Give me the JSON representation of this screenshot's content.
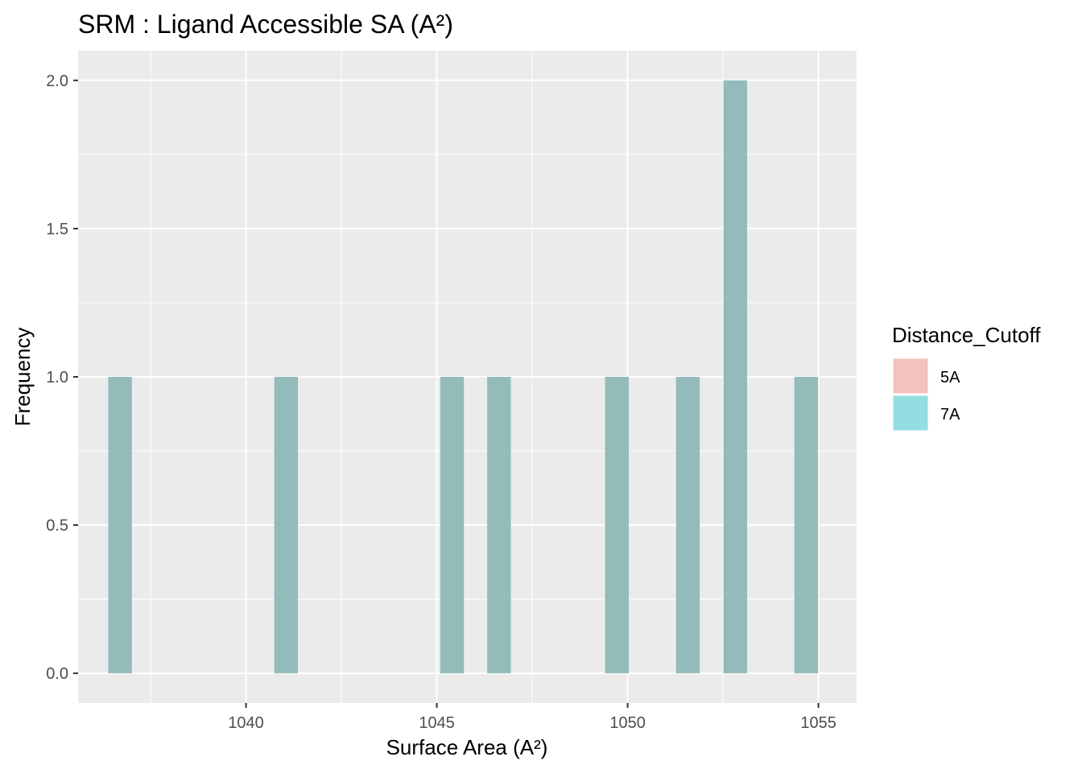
{
  "chart_data": {
    "type": "bar",
    "title": "SRM : Ligand Accessible SA (A²)",
    "xlabel": "Surface Area (A²)",
    "ylabel": "Frequency",
    "xlim": [
      1035.6,
      1056.0
    ],
    "ylim": [
      -0.1,
      2.1
    ],
    "bin_width": 0.62,
    "xticks": [
      1040,
      1045,
      1050,
      1055
    ],
    "xtick_labels": [
      "1040",
      "1045",
      "1050",
      "1055"
    ],
    "yticks": [
      0.0,
      0.5,
      1.0,
      1.5,
      2.0
    ],
    "ytick_labels": [
      "0.0",
      "0.5",
      "1.0",
      "1.5",
      "2.0"
    ],
    "grid": true,
    "legend": {
      "title": "Distance_Cutoff",
      "position": "right",
      "entries": [
        {
          "label": "5A",
          "color": "#F8766D"
        },
        {
          "label": "7A",
          "color": "#00BFC4"
        }
      ]
    },
    "series": [
      {
        "name": "5A",
        "color": "#F8766D",
        "x": [],
        "values": []
      },
      {
        "name": "7A",
        "color": "#00BFC4",
        "x": [
          1036.7,
          1041.05,
          1045.4,
          1046.63,
          1049.72,
          1051.58,
          1052.82,
          1054.68
        ],
        "values": [
          1,
          1,
          1,
          1,
          1,
          1,
          2,
          1
        ]
      }
    ],
    "colors": {
      "panel_background": "#EBEBEB",
      "grid": "#FFFFFF",
      "bar_fill": "#93BBBA",
      "legend_5A": "#F2C2BE",
      "legend_7A": "#93DEE1"
    }
  }
}
